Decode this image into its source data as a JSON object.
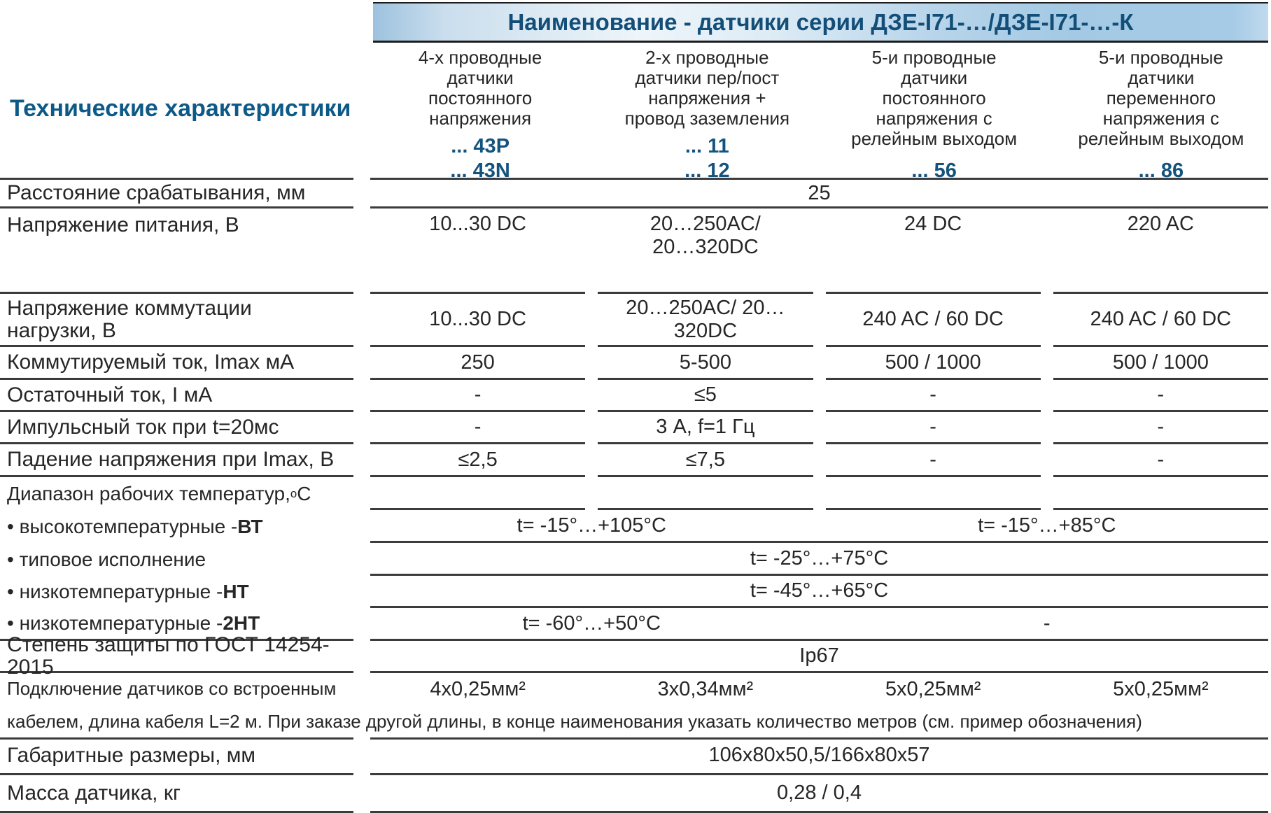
{
  "colors": {
    "accent_blue": "#0d5a88",
    "model_blue": "#14537e",
    "banner_text_blue": "#124e78",
    "banner_fill_blue": "#a6cbe6",
    "rule_gray": "#3c3c3c",
    "body_text": "#262626"
  },
  "banner": {
    "title": "Наименование - датчики серии ДЗЕ-I71-…/ДЗЕ-I71-…-К"
  },
  "section": {
    "title": "Технические характеристики"
  },
  "columns": [
    {
      "desc": "4-х проводные\nдатчики\nпостоянного\nнапряжения",
      "model1": "... 43P",
      "model2": "... 43N"
    },
    {
      "desc": "2-х проводные\nдатчики пер/пост\nнапряжения +\nпровод заземления",
      "model1": "... 11",
      "model2": "... 12"
    },
    {
      "desc": "5-и проводные\nдатчики\nпостоянного\nнапряжения с\nрелейным выходом",
      "model1": "",
      "model2": "... 56"
    },
    {
      "desc": "5-и проводные\nдатчики\nпеременного\nнапряжения с\nрелейным выходом",
      "model1": "",
      "model2": "... 86"
    }
  ],
  "rows": {
    "distance": {
      "label": "Расстояние срабатывания, мм",
      "value": "25"
    },
    "supply": {
      "label": "Напряжение питания, В",
      "v1": "10...30 DC",
      "v2": "20…250AC/\n20…320DC",
      "v3": "24 DC",
      "v4": "220 AC"
    },
    "switching": {
      "label": "Напряжение коммутации\nнагрузки, В",
      "v1": "10...30 DC",
      "v2": "20…250AC/ 20…320DC",
      "v3": "240 AC / 60  DC",
      "v4": "240 AC / 60  DC"
    },
    "current": {
      "label": "Коммутируемый ток, Imax мА",
      "v1": "250",
      "v2": "5-500",
      "v3": "500 / 1000",
      "v4": "500 / 1000"
    },
    "residual": {
      "label": "Остаточный ток, I мА",
      "v1": "-",
      "v2": "≤5",
      "v3": "-",
      "v4": "-"
    },
    "impulse": {
      "label": "Импульсный ток при t=20мс",
      "v1": "-",
      "v2": "3 А, f=1 Гц",
      "v3": "-",
      "v4": "-"
    },
    "drop": {
      "label": "Падение напряжения при Imax, В",
      "v1": "≤2,5",
      "v2": "≤7,5",
      "v3": "-",
      "v4": "-"
    },
    "temp_range": {
      "label": "Диапазон рабочих температур, ",
      "sup": "о",
      "suffix": "С"
    },
    "temp_high": {
      "bullet": "• высокотемпературные  - ",
      "bold": "ВТ",
      "v12": "t= -15°…+105°C",
      "v34": "t= -15°…+85°C"
    },
    "temp_typical": {
      "bullet": "• типовое исполнение",
      "bold": "",
      "value": "t= -25°…+75°C"
    },
    "temp_low": {
      "bullet": "• низкотемпературные - ",
      "bold": "НТ",
      "value": "t= -45°…+65°C"
    },
    "temp_low2": {
      "bullet": "• низкотемпературные - ",
      "bold": "2НТ",
      "v12": "t= -60°…+50°C",
      "v34": "-"
    },
    "protection": {
      "label": "Степень защиты по ГОСТ 14254-2015",
      "value": "Ip67"
    },
    "cable": {
      "label": "Подключение датчиков со встроенным",
      "v1": "4х0,25мм²",
      "v2": "3х0,34мм²",
      "v3": "5х0,25мм²",
      "v4": "5х0,25мм²",
      "note": "кабелем, длина кабеля L=2 м. При заказе другой длины, в конце наименования указать количество метров (см. пример обозначения)"
    },
    "dimensions": {
      "label": "Габаритные размеры, мм",
      "value": "106x80x50,5/166x80x57"
    },
    "weight": {
      "label": "Масса датчика, кг",
      "value": "0,28 / 0,4"
    }
  }
}
